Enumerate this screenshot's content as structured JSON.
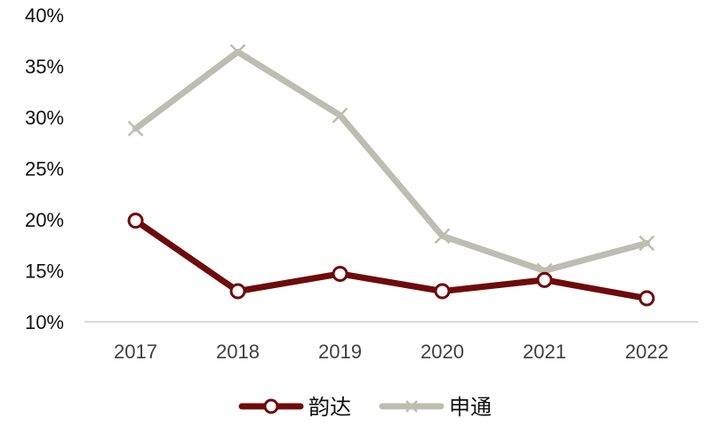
{
  "chart_data": {
    "type": "line",
    "title": "",
    "xlabel": "",
    "ylabel": "",
    "categories": [
      "2017",
      "2018",
      "2019",
      "2020",
      "2021",
      "2022"
    ],
    "y_ticks": [
      "10%",
      "15%",
      "20%",
      "25%",
      "30%",
      "35%",
      "40%"
    ],
    "ylim": [
      10,
      40
    ],
    "grid": false,
    "legend_position": "bottom",
    "series": [
      {
        "name": "韵达",
        "color": "#6E0B0B",
        "marker": "circle-open",
        "values": [
          19.9,
          13.0,
          14.7,
          13.0,
          14.1,
          12.3
        ]
      },
      {
        "name": "申通",
        "color": "#BDBDB0",
        "marker": "x",
        "values": [
          28.9,
          36.4,
          30.2,
          18.4,
          15.0,
          17.7
        ]
      }
    ]
  }
}
